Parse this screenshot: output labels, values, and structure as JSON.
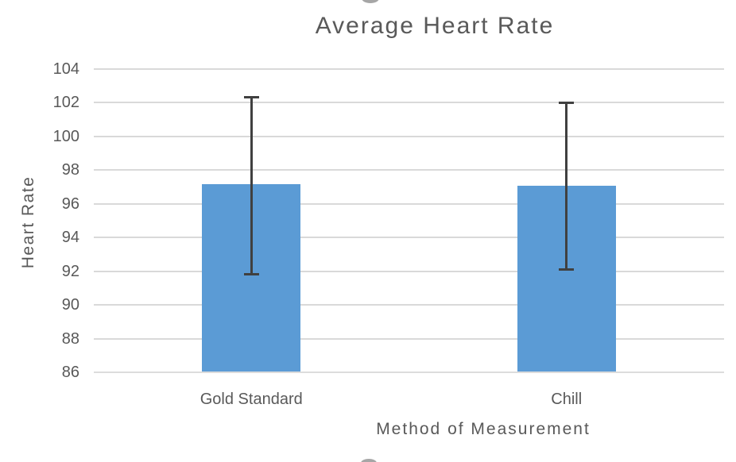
{
  "chart_data": {
    "type": "bar",
    "title": "Average Heart Rate",
    "xlabel": "Method of Measurement",
    "ylabel": "Heart Rate",
    "categories": [
      "Gold Standard",
      "Chill"
    ],
    "values": [
      97.15,
      97.05
    ],
    "error_bars": [
      {
        "low": 91.8,
        "high": 102.35
      },
      {
        "low": 92.1,
        "high": 102.0
      }
    ],
    "yticks": [
      104,
      102,
      100,
      98,
      96,
      94,
      92,
      90,
      88,
      86
    ],
    "ylim": [
      86,
      104
    ],
    "grid": "horizontal",
    "legend_position": "none",
    "colors": {
      "bar": "#5B9BD5",
      "error_bar": "#404040",
      "gridline": "#D9D9D9",
      "axis_line": "#DCDCDC",
      "text": "#595959",
      "handle": "#A6A6A6"
    }
  },
  "icons": {
    "top_handle": "resize-handle",
    "bottom_handle": "resize-handle"
  }
}
